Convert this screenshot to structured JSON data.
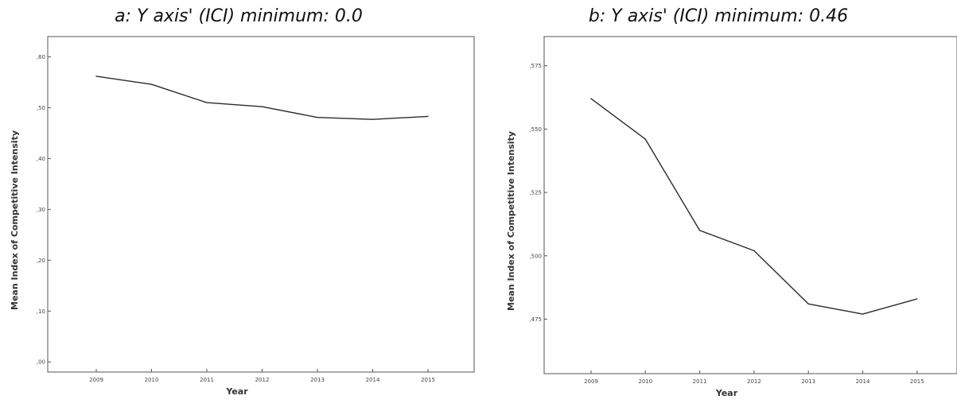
{
  "chart_data": [
    {
      "type": "line",
      "title": "a: Y axis' (ICI) minimum: 0.0",
      "xlabel": "Year",
      "ylabel": "Mean Index of Competitive Intensity",
      "categories": [
        "2009",
        "2010",
        "2011",
        "2012",
        "2013",
        "2014",
        "2015"
      ],
      "series": [
        {
          "values": [
            0.562,
            0.546,
            0.51,
            0.502,
            0.481,
            0.477,
            0.483
          ]
        }
      ],
      "ylim": [
        -0.02,
        0.64
      ],
      "yticks": [
        0.0,
        0.1,
        0.2,
        0.3,
        0.4,
        0.5,
        0.6
      ],
      "ytick_labels": [
        ",00",
        ",10",
        ",20",
        ",30",
        ",40",
        ",50",
        ",60"
      ],
      "grid": false
    },
    {
      "type": "line",
      "title": "b: Y axis' (ICI) minimum: 0.46",
      "xlabel": "Year",
      "ylabel": "Mean Index of Competitive Intensity",
      "categories": [
        "2009",
        "2010",
        "2011",
        "2012",
        "2013",
        "2014",
        "2015"
      ],
      "series": [
        {
          "values": [
            0.562,
            0.546,
            0.51,
            0.502,
            0.481,
            0.477,
            0.483
          ]
        }
      ],
      "ylim": [
        0.4535,
        0.5865
      ],
      "yticks": [
        0.475,
        0.5,
        0.525,
        0.55,
        0.575
      ],
      "ytick_labels": [
        ",475",
        ",500",
        ",525",
        ",550",
        ",575"
      ],
      "grid": false
    }
  ],
  "style": {
    "line_color": "#2b2b2b",
    "axis_color": "#555555"
  }
}
